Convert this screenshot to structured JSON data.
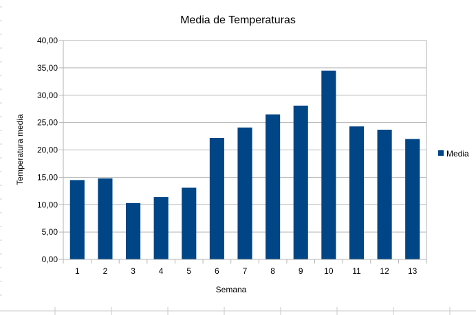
{
  "chart_data": {
    "type": "bar",
    "title": "Media de Temperaturas",
    "xlabel": "Semana",
    "ylabel": "Temperatura media",
    "categories": [
      "1",
      "2",
      "3",
      "4",
      "5",
      "6",
      "7",
      "8",
      "9",
      "10",
      "11",
      "12",
      "13"
    ],
    "series": [
      {
        "name": "Media",
        "color": "#004586",
        "values": [
          14.5,
          14.8,
          10.3,
          11.4,
          13.1,
          22.2,
          24.1,
          26.5,
          28.1,
          34.5,
          24.3,
          23.7,
          22.0
        ]
      }
    ],
    "ylim": [
      0,
      40
    ],
    "yticks": [
      "0,00",
      "5,00",
      "10,00",
      "15,00",
      "20,00",
      "25,00",
      "30,00",
      "35,00",
      "40,00"
    ],
    "grid": true,
    "legend_position": "right"
  }
}
